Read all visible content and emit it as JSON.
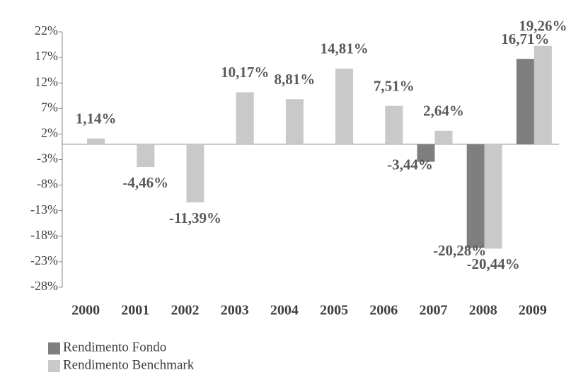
{
  "chart_data": {
    "type": "bar",
    "categories": [
      "2000",
      "2001",
      "2002",
      "2003",
      "2004",
      "2005",
      "2006",
      "2007",
      "2008",
      "2009"
    ],
    "series": [
      {
        "name": "Rendimento Fondo",
        "color": "#7f7f7f",
        "values": [
          null,
          null,
          null,
          null,
          null,
          null,
          null,
          -3.44,
          -20.28,
          16.71
        ],
        "value_labels": [
          null,
          null,
          null,
          null,
          null,
          null,
          null,
          "-3,44%",
          "-20,28%",
          "16,71%"
        ]
      },
      {
        "name": "Rendimento Benchmark",
        "color": "#c9c9c9",
        "values": [
          1.14,
          -4.46,
          -11.39,
          10.17,
          8.81,
          14.81,
          7.51,
          2.64,
          -20.44,
          19.26
        ],
        "value_labels": [
          "1,14%",
          "-4,46%",
          "-11,39%",
          "10,17%",
          "8,81%",
          "14,81%",
          "7,51%",
          "2,64%",
          "-20,44%",
          "19,26%"
        ]
      }
    ],
    "ylim": [
      -28,
      22
    ],
    "yticks": [
      {
        "value": 22,
        "label": "22%"
      },
      {
        "value": 17,
        "label": "17%"
      },
      {
        "value": 12,
        "label": "12%"
      },
      {
        "value": 7,
        "label": "7%"
      },
      {
        "value": 2,
        "label": "2%"
      },
      {
        "value": -3,
        "label": "-3%"
      },
      {
        "value": -8,
        "label": "-8%"
      },
      {
        "value": -13,
        "label": "-13%"
      },
      {
        "value": -18,
        "label": "-18%"
      },
      {
        "value": -23,
        "label": "-23%"
      },
      {
        "value": -28,
        "label": "-28%"
      }
    ],
    "grid": false,
    "legend": "bottom-left"
  }
}
